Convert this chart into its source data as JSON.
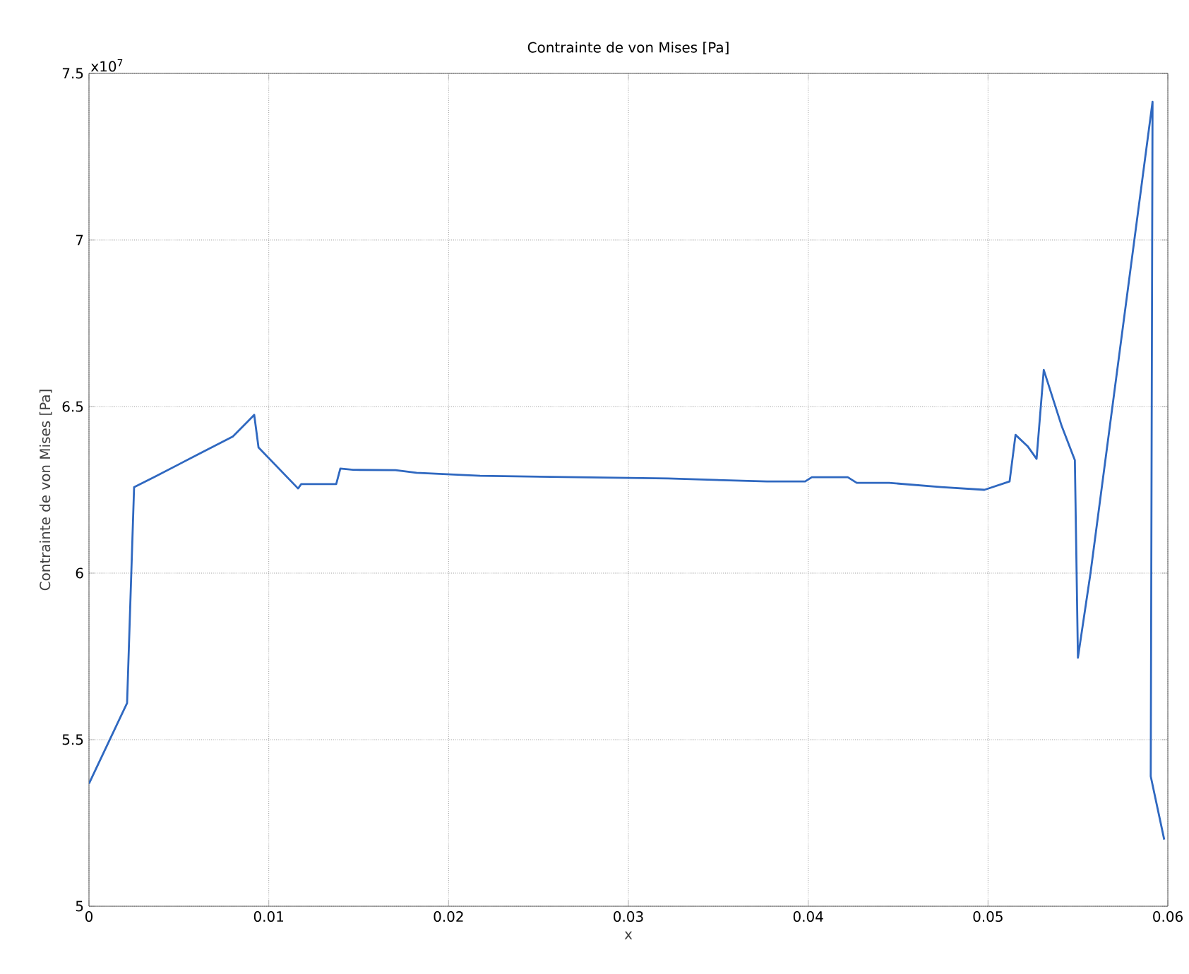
{
  "chart_data": {
    "type": "line",
    "title": "Contrainte de von Mises [Pa]",
    "xlabel": "x",
    "ylabel": "Contrainte de von Mises [Pa]",
    "annotations": [
      "x10$^{7}$"
    ],
    "x": [
      0,
      0.00212,
      0.00251,
      0.0037,
      0.00605,
      0.008,
      0.00903,
      0.00919,
      0.00943,
      0.01163,
      0.0118,
      0.01375,
      0.01398,
      0.01469,
      0.01705,
      0.01822,
      0.02176,
      0.0322,
      0.0377,
      0.03983,
      0.0402,
      0.0422,
      0.0427,
      0.0445,
      0.0474,
      0.0498,
      0.0512,
      0.05153,
      0.0522,
      0.0527,
      0.0531,
      0.0541,
      0.05483,
      0.055,
      0.0557,
      0.05915,
      0.05905,
      0.0598
    ],
    "series": [
      {
        "color": "#2f68c0",
        "values": [
          5.368,
          5.61,
          6.258,
          6.29,
          6.356,
          6.41,
          6.466,
          6.475,
          6.377,
          6.254,
          6.267,
          6.267,
          6.314,
          6.31,
          6.309,
          6.301,
          6.292,
          6.284,
          6.275,
          6.275,
          6.288,
          6.288,
          6.271,
          6.271,
          6.258,
          6.25,
          6.275,
          6.415,
          6.381,
          6.343,
          6.61,
          6.441,
          6.339,
          5.746,
          6.0,
          7.415,
          5.39,
          5.2
        ]
      }
    ],
    "xlim": [
      0,
      0.06
    ],
    "ylim": [
      5,
      7.5
    ],
    "xticks": [
      0,
      0.01,
      0.02,
      0.03,
      0.04,
      0.05,
      0.06
    ],
    "yticks": [
      5,
      5.5,
      6,
      6.5,
      7,
      7.5
    ],
    "grid": true,
    "marker": "none",
    "line_style": "solid"
  }
}
